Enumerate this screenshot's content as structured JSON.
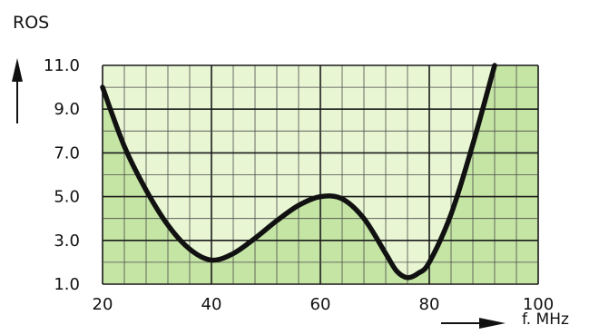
{
  "chart_data": {
    "type": "line",
    "title": "",
    "ylabel": "ROS",
    "xlabel": "f. MHz",
    "x_ticks": [
      "20",
      "40",
      "60",
      "80",
      "100"
    ],
    "y_ticks": [
      "1.0",
      "3.0",
      "5.0",
      "7.0",
      "9.0",
      "11.0"
    ],
    "xlim": [
      20,
      100
    ],
    "ylim": [
      1,
      11
    ],
    "grid": true,
    "series": [
      {
        "x": [
          20,
          24,
          28,
          32,
          36,
          40,
          44,
          48,
          52,
          56,
          60,
          64,
          68,
          72,
          74,
          76,
          78,
          80,
          84,
          88,
          92
        ],
        "y": [
          10.0,
          7.3,
          5.3,
          3.7,
          2.6,
          2.1,
          2.4,
          3.1,
          3.9,
          4.6,
          5.0,
          4.9,
          4.0,
          2.4,
          1.6,
          1.3,
          1.5,
          2.0,
          4.2,
          7.4,
          11.0
        ]
      }
    ],
    "colors": {
      "inside": "#e8f6d4",
      "outside": "#c5e5a5",
      "grid_minor": "#4a4a4a",
      "grid_major": "#1a1a1a",
      "curve": "#111111"
    }
  }
}
